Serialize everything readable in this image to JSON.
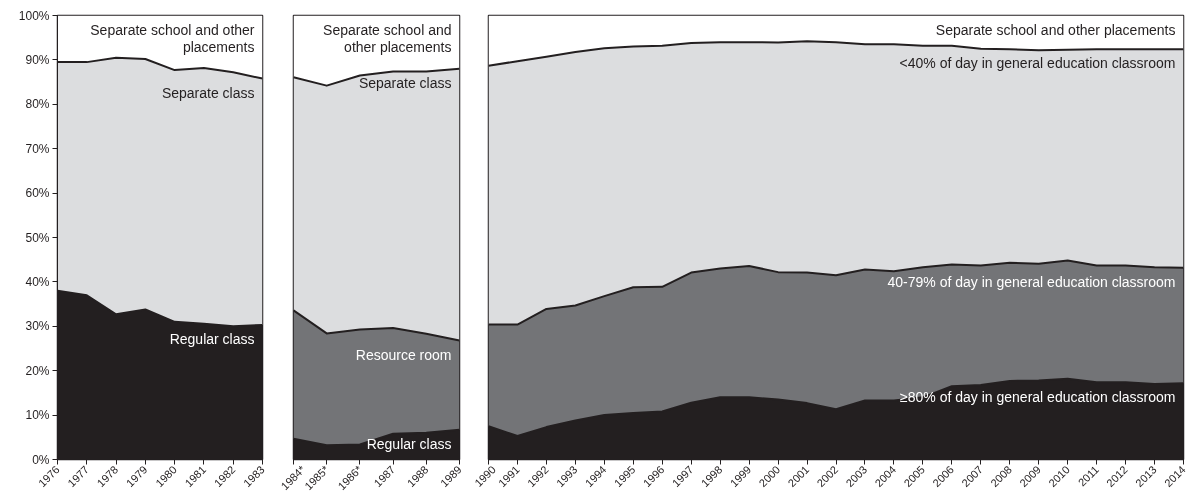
{
  "chart_data": [
    {
      "type": "area",
      "stacked": true,
      "categories": [
        "1976",
        "1977",
        "1978",
        "1979",
        "1980",
        "1981",
        "1982",
        "1983"
      ],
      "ylim": [
        0,
        100
      ],
      "yticks": [
        {
          "value": 0,
          "label": "0%"
        },
        {
          "value": 10,
          "label": "10%"
        },
        {
          "value": 20,
          "label": "20%"
        },
        {
          "value": 30,
          "label": "30%"
        },
        {
          "value": 40,
          "label": "40%"
        },
        {
          "value": 50,
          "label": "50%"
        },
        {
          "value": 60,
          "label": "60%"
        },
        {
          "value": 70,
          "label": "70%"
        },
        {
          "value": 80,
          "label": "80%"
        },
        {
          "value": 90,
          "label": "90%"
        },
        {
          "value": 100,
          "label": "100%"
        }
      ],
      "series": [
        {
          "name": "Regular class",
          "color": "#231f20",
          "values": [
            38,
            37,
            32.7,
            33.8,
            31,
            30.6,
            30,
            30.3
          ]
        },
        {
          "name": "Separate class",
          "color": "#dcdddf",
          "values": [
            51.5,
            52.5,
            57.8,
            56.4,
            56.7,
            57.6,
            57.2,
            55.5
          ]
        },
        {
          "name": "Separate school and other placements",
          "color": "#ffffff",
          "values": [
            10.5,
            10.5,
            9.5,
            9.8,
            12.3,
            11.8,
            12.8,
            14.2
          ]
        }
      ]
    },
    {
      "type": "area",
      "stacked": true,
      "categories": [
        "1984*",
        "1985*",
        "1986*",
        "1987",
        "1988",
        "1989"
      ],
      "ylim": [
        0,
        100
      ],
      "tick_labels": "x",
      "series": [
        {
          "name": "Regular class",
          "color": "#231f20",
          "values": [
            4.7,
            3.2,
            3.4,
            5.8,
            6.0,
            6.7
          ]
        },
        {
          "name": "Resource room",
          "color": "#737477",
          "values": [
            28.9,
            25.2,
            25.9,
            23.8,
            22.3,
            20.1
          ]
        },
        {
          "name": "Separate class",
          "color": "#dcdddf",
          "values": [
            52.5,
            55.8,
            57.2,
            57.8,
            59.1,
            61.2
          ]
        },
        {
          "name": "Separate school and other placements",
          "color": "#ffffff",
          "values": [
            13.9,
            15.8,
            13.5,
            12.6,
            12.6,
            12.0
          ]
        }
      ]
    },
    {
      "type": "area",
      "stacked": true,
      "categories": [
        "1990",
        "1991",
        "1992",
        "1993",
        "1994",
        "1995",
        "1996",
        "1997",
        "1998",
        "1999",
        "2000",
        "2001",
        "2002",
        "2003",
        "2004",
        "2005",
        "2006",
        "2007",
        "2008",
        "2009",
        "2010",
        "2011",
        "2012",
        "2013",
        "2014"
      ],
      "ylim": [
        0,
        100
      ],
      "tick_labels": "x",
      "series": [
        {
          "name": "≥80% of day in general education classroom",
          "color": "#231f20",
          "values": [
            7.5,
            5.3,
            7.3,
            8.8,
            10,
            10.5,
            10.8,
            12.8,
            14,
            14,
            13.5,
            12.7,
            11.3,
            13.3,
            13.3,
            14,
            16.5,
            16.8,
            17.7,
            17.8,
            18.2,
            17.4,
            17.4,
            17,
            17.2
          ]
        },
        {
          "name": "40-79% of day in general education classroom",
          "color": "#737477",
          "values": [
            22.9,
            25.1,
            26.6,
            25.9,
            26.8,
            28.3,
            28.1,
            29.3,
            29.0,
            29.6,
            28.7,
            29.4,
            30.2,
            29.5,
            29.1,
            29.3,
            27.4,
            26.9,
            26.6,
            26.3,
            26.6,
            26.3,
            26.3,
            26.3,
            26.0
          ]
        },
        {
          "name": "<40% of day in general education classroom",
          "color": "#dcdddf",
          "values": [
            58.3,
            59.3,
            56.8,
            57.1,
            55.8,
            54.2,
            54.3,
            51.7,
            51.0,
            50.4,
            51.7,
            52.1,
            52.5,
            50.7,
            51.1,
            49.9,
            49.3,
            48.8,
            48.1,
            48.1,
            47.5,
            48.7,
            48.7,
            49.1,
            49.2
          ]
        },
        {
          "name": "Separate school and other placements",
          "color": "#ffffff",
          "values": [
            11.3,
            10.3,
            9.3,
            8.2,
            7.4,
            7.0,
            6.8,
            6.2,
            6.0,
            6.0,
            6.1,
            5.8,
            6.0,
            6.5,
            6.5,
            6.8,
            6.8,
            7.5,
            7.6,
            7.8,
            7.7,
            7.6,
            7.6,
            7.6,
            7.6
          ]
        }
      ]
    }
  ]
}
